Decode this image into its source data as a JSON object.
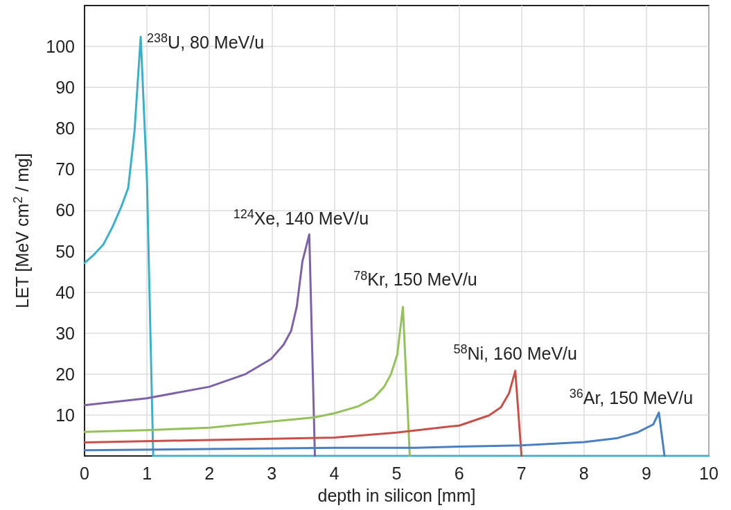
{
  "chart_data": {
    "type": "line",
    "xlabel": "depth in silicon [mm]",
    "ylabel": "LET [MeV cm$^{2}$ / mg]",
    "xlim": [
      0,
      10
    ],
    "xticks": [
      0,
      1,
      2,
      3,
      4,
      5,
      6,
      7,
      8,
      9,
      10
    ],
    "ylim": [
      0,
      110
    ],
    "yticks": [
      10,
      20,
      30,
      40,
      50,
      60,
      70,
      80,
      90,
      100
    ],
    "grid": true,
    "marker": "none",
    "line_style": "solid",
    "series": [
      {
        "name": "$^{238}$U, 80 MeV/u",
        "color": "#3bb0c9",
        "x": [
          0,
          0.14,
          0.3,
          0.45,
          0.59,
          0.7,
          0.8,
          0.9,
          1.0,
          1.1,
          10
        ],
        "values": [
          47.1,
          49,
          51.6,
          56,
          60.9,
          65.5,
          79.2,
          102.4,
          67.5,
          0,
          0
        ]
      },
      {
        "name": "$^{124}$Xe, 140 MeV/u",
        "color": "#7d62a8",
        "x": [
          0,
          1.0,
          2.0,
          2.58,
          2.99,
          3.19,
          3.31,
          3.4,
          3.49,
          3.6,
          3.69
        ],
        "values": [
          12.4,
          14.1,
          16.9,
          20,
          23.7,
          27.2,
          30.6,
          36.5,
          47.5,
          54.1,
          0
        ]
      },
      {
        "name": "$^{78}$Kr, 150 MeV/u",
        "color": "#94c15a",
        "x": [
          0,
          1.0,
          2.0,
          3.0,
          3.67,
          4.0,
          4.38,
          4.63,
          4.8,
          4.91,
          5.01,
          5.1,
          5.21
        ],
        "values": [
          5.9,
          6.3,
          6.9,
          8.4,
          9.4,
          10.4,
          12.1,
          14.1,
          16.9,
          20,
          24.8,
          36.4,
          0
        ]
      },
      {
        "name": "$^{58}$Ni, 160 MeV/u",
        "color": "#c8504a",
        "x": [
          0,
          2.0,
          3.0,
          4.0,
          5.0,
          5.85,
          6.0,
          6.48,
          6.67,
          6.8,
          6.9,
          7.0
        ],
        "values": [
          3.3,
          3.9,
          4.2,
          4.5,
          5.7,
          7.2,
          7.4,
          9.9,
          11.9,
          15.3,
          20.8,
          0
        ]
      },
      {
        "name": "$^{36}$Ar, 150 MeV/u",
        "color": "#4a7fc1",
        "x": [
          0,
          2.0,
          4.0,
          5.3,
          6.0,
          7.0,
          8.0,
          8.52,
          8.85,
          9.11,
          9.2,
          9.29
        ],
        "values": [
          1.4,
          1.7,
          2.0,
          2.0,
          2.3,
          2.6,
          3.4,
          4.3,
          5.7,
          7.7,
          10.6,
          0
        ]
      }
    ]
  }
}
